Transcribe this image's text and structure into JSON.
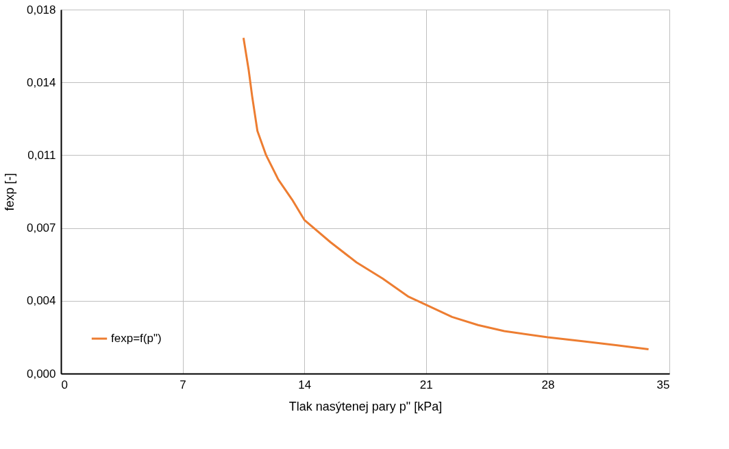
{
  "chart_data": {
    "type": "line",
    "xlabel": "Tlak nasýtenej pary p\" [kPa]",
    "ylabel": "fexp [-]",
    "xlim": [
      0,
      35
    ],
    "xticks": [
      0,
      7,
      14,
      21,
      28,
      35
    ],
    "ylim": [
      0,
      0.018
    ],
    "yticks": [
      {
        "value": 0,
        "label": "0,000"
      },
      {
        "value": 0.0036,
        "label": "0,004"
      },
      {
        "value": 0.0072,
        "label": "0,007"
      },
      {
        "value": 0.0108,
        "label": "0,011"
      },
      {
        "value": 0.0144,
        "label": "0,014"
      },
      {
        "value": 0.018,
        "label": "0,018"
      }
    ],
    "grid": true,
    "legend": "bottom left",
    "marker": "none",
    "line_style": "solid",
    "series": [
      {
        "name": "fexp=f(p\")",
        "color": "#ed7d31",
        "x": [
          10.5,
          10.8,
          11.0,
          11.3,
          11.8,
          12.5,
          13.3,
          14.0,
          15.5,
          17,
          18.5,
          20,
          21,
          22.5,
          24,
          25.5,
          28,
          30,
          32,
          33.8
        ],
        "values": [
          0.0166,
          0.015,
          0.0137,
          0.012,
          0.0108,
          0.0096,
          0.0086,
          0.0076,
          0.0065,
          0.0055,
          0.0047,
          0.0038,
          0.0034,
          0.0028,
          0.0024,
          0.0021,
          0.0018,
          0.0016,
          0.0014,
          0.0012
        ]
      }
    ]
  }
}
